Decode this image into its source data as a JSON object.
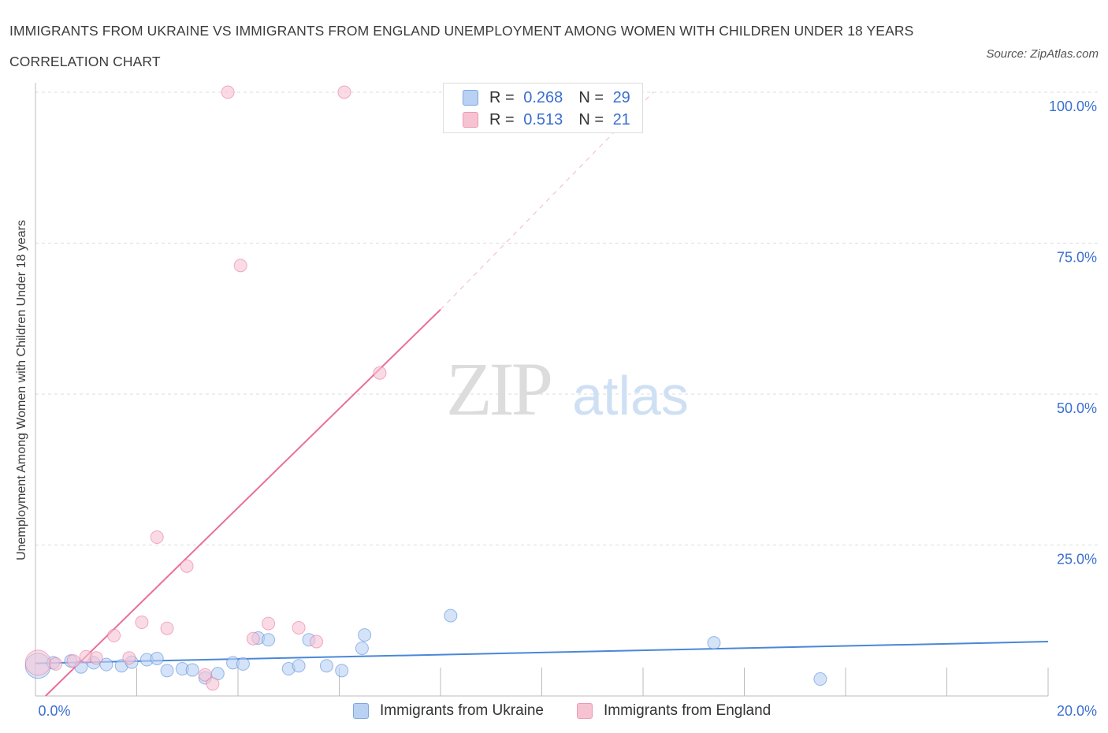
{
  "title": "IMMIGRANTS FROM UKRAINE VS IMMIGRANTS FROM ENGLAND UNEMPLOYMENT AMONG WOMEN WITH CHILDREN UNDER 18 YEARS CORRELATION CHART",
  "source": "Source: ZipAtlas.com",
  "watermark": {
    "zip": "ZIP",
    "atlas": "atlas"
  },
  "legend_top": {
    "rows": [
      {
        "r_label": "R =",
        "r_value": "0.268",
        "n_label": "N =",
        "n_value": "29"
      },
      {
        "r_label": "R =",
        "r_value": "0.513",
        "n_label": "N =",
        "n_value": "21"
      }
    ]
  },
  "chart_data": {
    "type": "scatter",
    "title": "IMMIGRANTS FROM UKRAINE VS IMMIGRANTS FROM ENGLAND UNEMPLOYMENT AMONG WOMEN WITH CHILDREN UNDER 18 YEARS CORRELATION CHART",
    "xlabel": "",
    "ylabel": "Unemployment Among Women with Children Under 18 years",
    "xlim": [
      0,
      20
    ],
    "ylim": [
      0,
      100
    ],
    "x_tick_labels": [
      "0.0%",
      "20.0%"
    ],
    "y_tick_labels": [
      "100.0%",
      "75.0%",
      "50.0%",
      "25.0%"
    ],
    "y_gridlines": [
      100,
      75,
      50,
      25
    ],
    "legend_position": "bottom-center",
    "series": [
      {
        "name": "Immigrants from Ukraine",
        "color": "#4a87d8",
        "fill": "#b9d1f3",
        "r": 0.268,
        "n": 29,
        "trend": {
          "x": [
            0,
            20
          ],
          "y": [
            5.4,
            9.0
          ]
        },
        "points": [
          {
            "x": 0.05,
            "y": 5.0,
            "big": true
          },
          {
            "x": 0.35,
            "y": 5.5
          },
          {
            "x": 0.7,
            "y": 5.8
          },
          {
            "x": 0.9,
            "y": 4.8
          },
          {
            "x": 1.15,
            "y": 5.5
          },
          {
            "x": 1.4,
            "y": 5.2
          },
          {
            "x": 1.7,
            "y": 5.0
          },
          {
            "x": 1.9,
            "y": 5.6
          },
          {
            "x": 2.2,
            "y": 6.0
          },
          {
            "x": 2.4,
            "y": 6.2
          },
          {
            "x": 2.6,
            "y": 4.2
          },
          {
            "x": 2.9,
            "y": 4.5
          },
          {
            "x": 3.1,
            "y": 4.3
          },
          {
            "x": 3.35,
            "y": 3.0
          },
          {
            "x": 3.6,
            "y": 3.7
          },
          {
            "x": 3.9,
            "y": 5.5
          },
          {
            "x": 4.1,
            "y": 5.3
          },
          {
            "x": 4.4,
            "y": 9.6
          },
          {
            "x": 4.6,
            "y": 9.3
          },
          {
            "x": 5.0,
            "y": 4.5
          },
          {
            "x": 5.2,
            "y": 5.0
          },
          {
            "x": 5.4,
            "y": 9.3
          },
          {
            "x": 5.75,
            "y": 5.0
          },
          {
            "x": 6.05,
            "y": 4.2
          },
          {
            "x": 6.45,
            "y": 7.9
          },
          {
            "x": 6.5,
            "y": 10.1
          },
          {
            "x": 8.2,
            "y": 13.3
          },
          {
            "x": 13.4,
            "y": 8.8
          },
          {
            "x": 15.5,
            "y": 2.8
          }
        ]
      },
      {
        "name": "Immigrants from England",
        "color": "#e86f99",
        "fill": "#f6c3d3",
        "r": 0.513,
        "n": 21,
        "trend": {
          "x": [
            0.2,
            8.0
          ],
          "y": [
            0.0,
            64.0
          ]
        },
        "trend_dashed": {
          "x": [
            8.0,
            12.2
          ],
          "y": [
            64.0,
            100.0
          ]
        },
        "points": [
          {
            "x": 0.05,
            "y": 5.5,
            "big": true
          },
          {
            "x": 0.4,
            "y": 5.3
          },
          {
            "x": 0.75,
            "y": 5.8
          },
          {
            "x": 1.0,
            "y": 6.5
          },
          {
            "x": 1.2,
            "y": 6.3
          },
          {
            "x": 1.55,
            "y": 10.0
          },
          {
            "x": 1.85,
            "y": 6.3
          },
          {
            "x": 2.1,
            "y": 12.2
          },
          {
            "x": 2.4,
            "y": 26.3
          },
          {
            "x": 2.6,
            "y": 11.2
          },
          {
            "x": 2.99,
            "y": 21.5
          },
          {
            "x": 3.35,
            "y": 3.5
          },
          {
            "x": 3.5,
            "y": 2.0
          },
          {
            "x": 3.8,
            "y": 100.0
          },
          {
            "x": 4.05,
            "y": 71.3
          },
          {
            "x": 4.3,
            "y": 9.5
          },
          {
            "x": 4.6,
            "y": 12.0
          },
          {
            "x": 5.2,
            "y": 11.3
          },
          {
            "x": 5.55,
            "y": 9.0
          },
          {
            "x": 6.1,
            "y": 100.0
          },
          {
            "x": 6.8,
            "y": 53.5
          }
        ]
      }
    ]
  }
}
